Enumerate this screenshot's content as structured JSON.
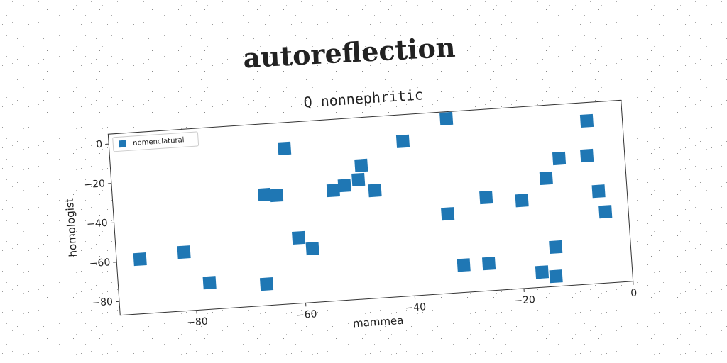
{
  "title": "autoreflection",
  "chart_data": {
    "type": "scatter",
    "title": "Q nonnephritic",
    "x_label": "mammea",
    "y_label": "homologist",
    "series": [
      {
        "name": "nomenclatural",
        "color": "#1f77b4",
        "x": [
          -89.7,
          -81.6,
          -77.3,
          -66.9,
          -62.0,
          -66.2,
          -64.0,
          -60.5,
          -58.1,
          -53.6,
          -51.5,
          -48.9,
          -48.2,
          -46.0,
          -40.3,
          -32.1,
          -33.0,
          -30.7,
          -26.1,
          -25.8,
          -19.3,
          -16.5,
          -14.0,
          -13.7,
          -14.6,
          -12.0,
          -6.5,
          -6.9,
          -5.2,
          -4.2
        ],
        "values": [
          -59.3,
          -57.2,
          -73.5,
          -76.1,
          -8.1,
          -30.8,
          -31.6,
          -53.8,
          -59.7,
          -31.0,
          -28.9,
          -26.4,
          -19.3,
          -32.4,
          -8.5,
          1.5,
          -46.7,
          -73.1,
          -73.2,
          -39.7,
          -42.4,
          -79.3,
          -81.9,
          -67.1,
          -32.0,
          -22.4,
          -4.3,
          -21.9,
          -40.3,
          -50.9
        ]
      }
    ],
    "xlim": [
      -94,
      0
    ],
    "ylim": [
      -87,
      5
    ],
    "xticks": [
      {
        "value": -80,
        "label": "−80"
      },
      {
        "value": -60,
        "label": "−60"
      },
      {
        "value": -40,
        "label": "−40"
      },
      {
        "value": -20,
        "label": "−20"
      },
      0
    ],
    "yticks": [
      0,
      {
        "value": -20,
        "label": "−20"
      },
      {
        "value": -40,
        "label": "−40"
      },
      {
        "value": -60,
        "label": "−60"
      },
      {
        "value": -80,
        "label": "−80"
      }
    ],
    "legend": "upper left"
  }
}
